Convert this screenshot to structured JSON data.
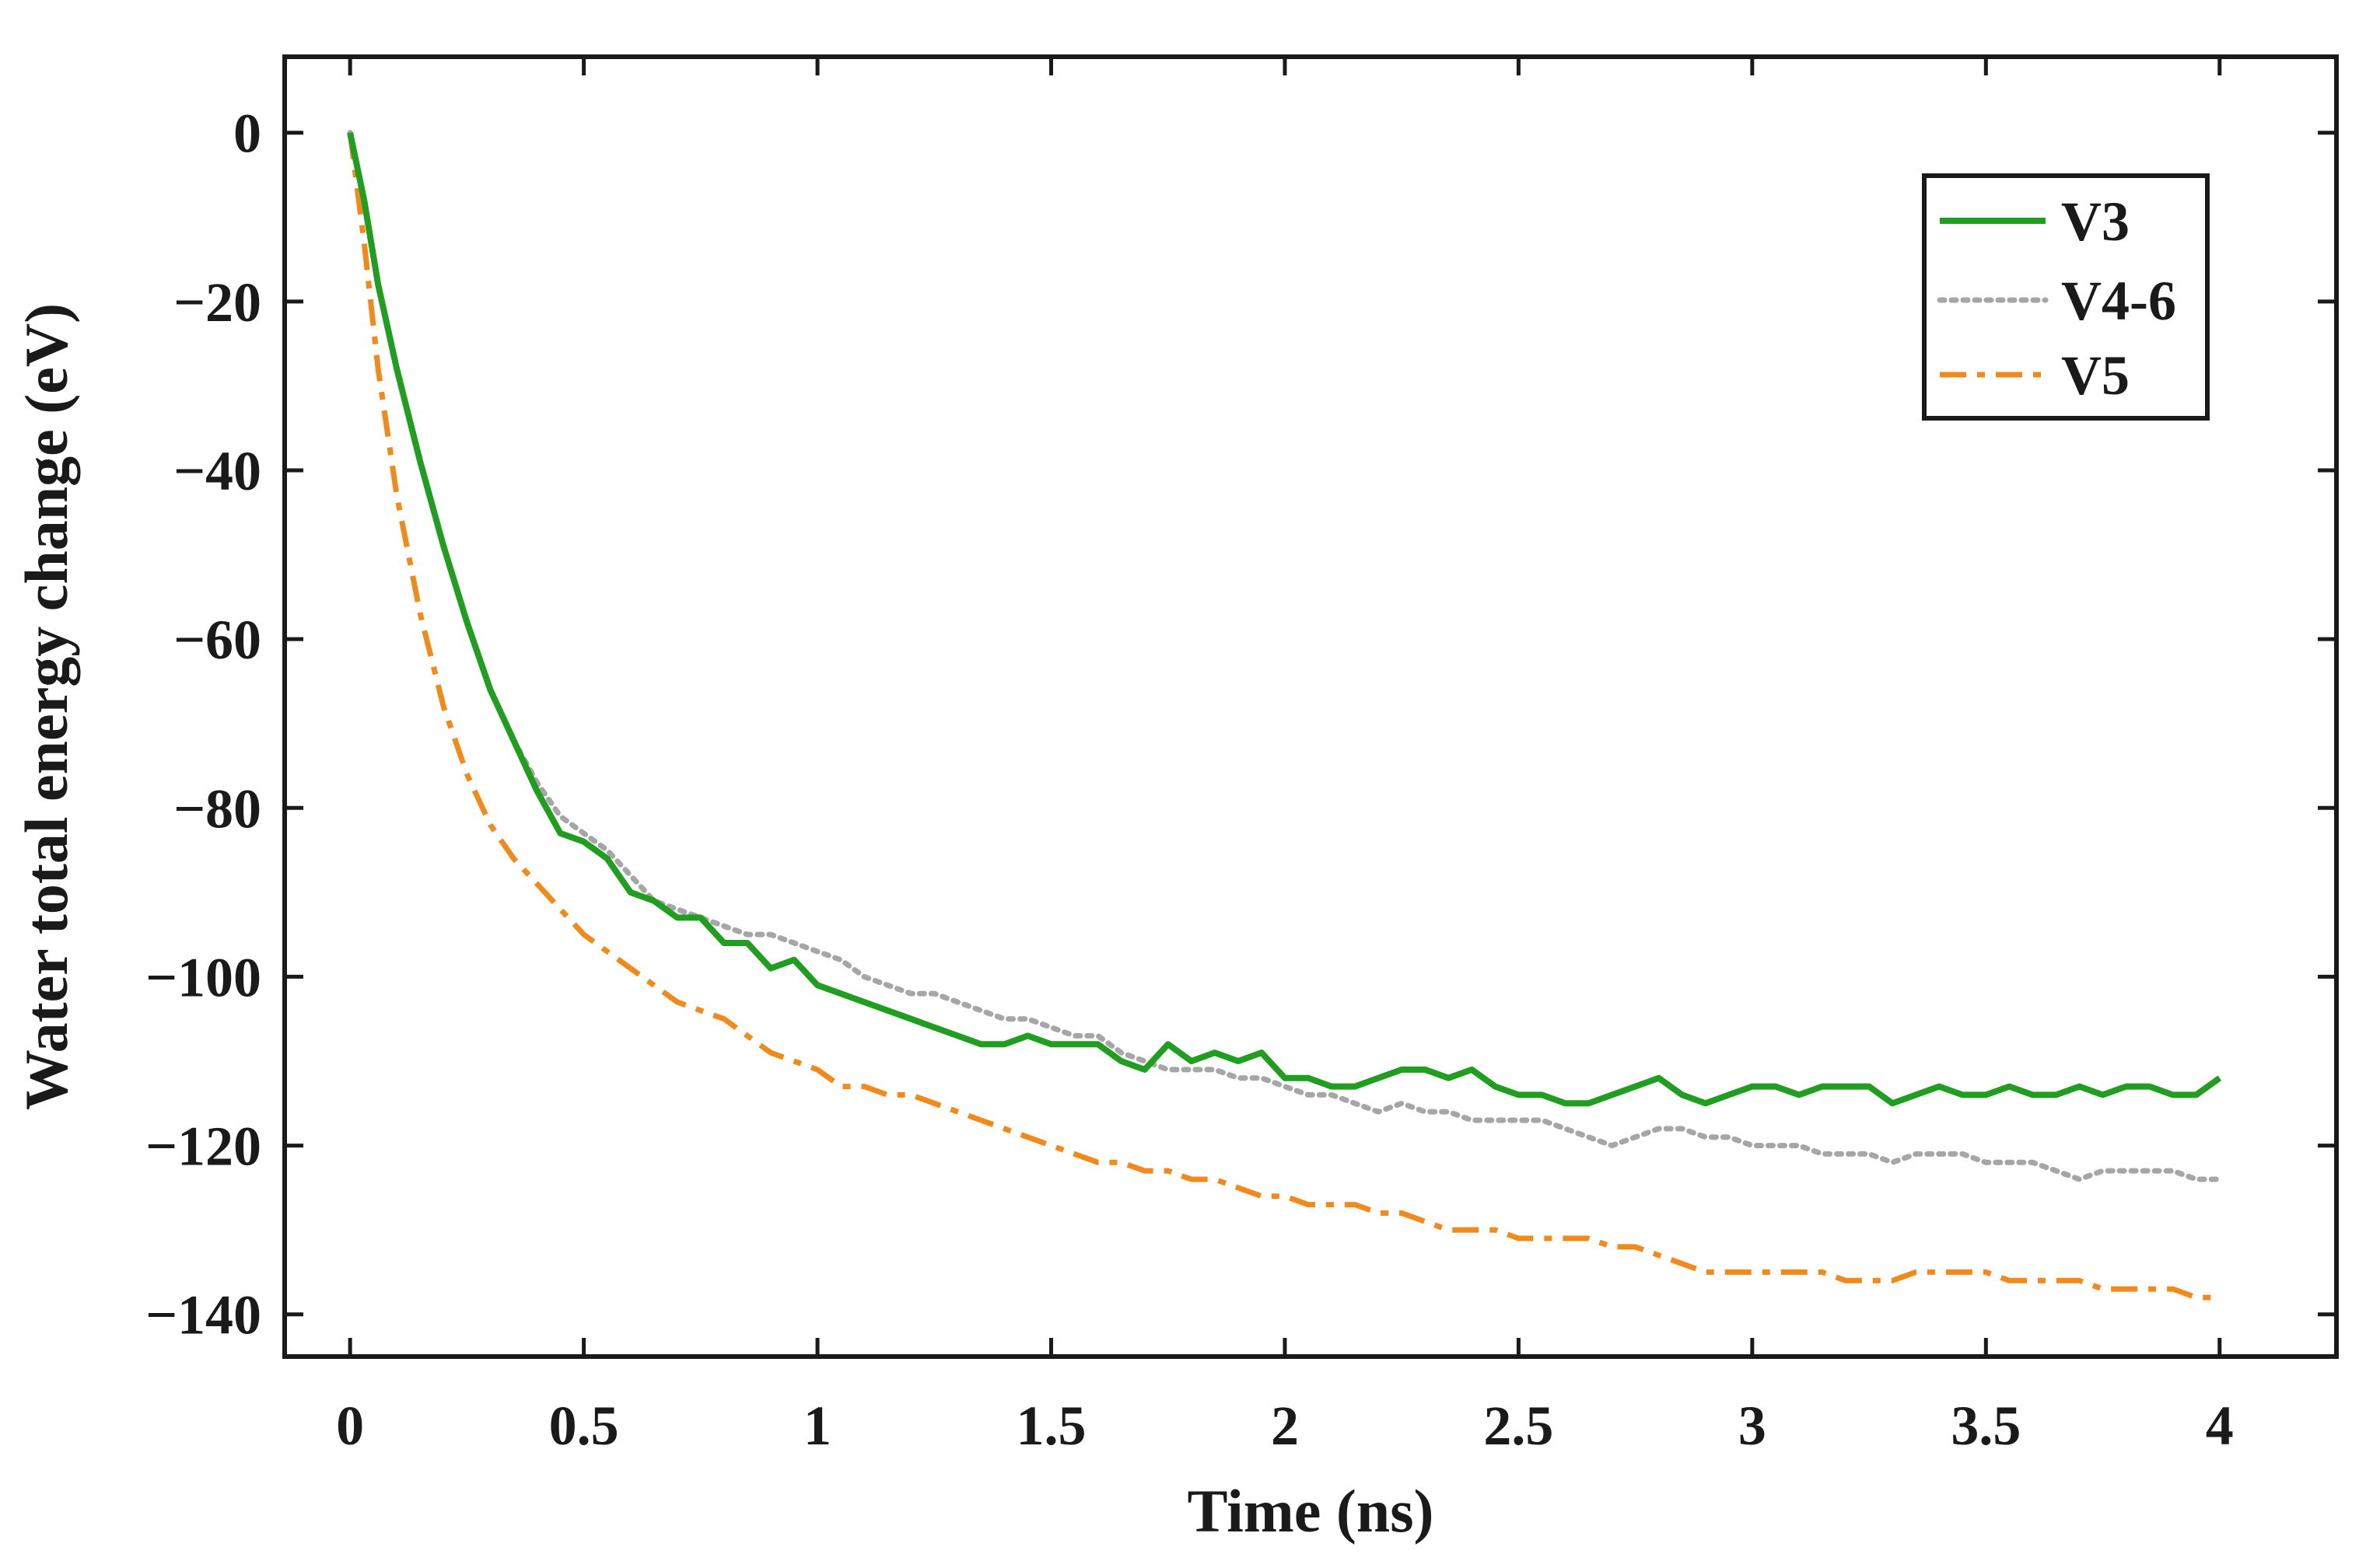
{
  "chart_data": {
    "type": "line",
    "title": "",
    "xlabel": "Time (ns)",
    "ylabel": "Water total energy change (eV)",
    "xlim": [
      -0.14,
      4.25
    ],
    "ylim": [
      -145,
      9
    ],
    "xticks": [
      0,
      0.5,
      1,
      1.5,
      2,
      2.5,
      3,
      3.5,
      4
    ],
    "xtick_labels": [
      "0",
      "0.5",
      "1",
      "1.5",
      "2",
      "2.5",
      "3",
      "3.5",
      "4"
    ],
    "yticks": [
      0,
      -20,
      -40,
      -60,
      -80,
      -100,
      -120,
      -140
    ],
    "ytick_labels": [
      "0",
      "−20",
      "−40",
      "−60",
      "−80",
      "−100",
      "−120",
      "−140"
    ],
    "grid": false,
    "legend_position": "top-right",
    "series": [
      {
        "name": "V3",
        "color": "#1f9e1f",
        "style": "solid",
        "x": [
          0,
          0.03,
          0.06,
          0.1,
          0.15,
          0.2,
          0.25,
          0.3,
          0.35,
          0.4,
          0.45,
          0.5,
          0.55,
          0.6,
          0.65,
          0.7,
          0.75,
          0.8,
          0.85,
          0.9,
          0.95,
          1.0,
          1.05,
          1.1,
          1.15,
          1.2,
          1.25,
          1.3,
          1.35,
          1.4,
          1.45,
          1.5,
          1.55,
          1.6,
          1.65,
          1.7,
          1.75,
          1.8,
          1.85,
          1.9,
          1.95,
          2.0,
          2.05,
          2.1,
          2.15,
          2.2,
          2.25,
          2.3,
          2.35,
          2.4,
          2.45,
          2.5,
          2.55,
          2.6,
          2.65,
          2.7,
          2.75,
          2.8,
          2.85,
          2.9,
          2.95,
          3.0,
          3.05,
          3.1,
          3.15,
          3.2,
          3.25,
          3.3,
          3.35,
          3.4,
          3.45,
          3.5,
          3.55,
          3.6,
          3.65,
          3.7,
          3.75,
          3.8,
          3.85,
          3.9,
          3.95,
          4.0
        ],
        "y": [
          0,
          -8,
          -18,
          -28,
          -39,
          -49,
          -58,
          -66,
          -72,
          -78,
          -83,
          -84,
          -86,
          -90,
          -91,
          -93,
          -93,
          -96,
          -96,
          -99,
          -98,
          -101,
          -102,
          -103,
          -104,
          -105,
          -106,
          -107,
          -108,
          -108,
          -107,
          -108,
          -108,
          -108,
          -110,
          -111,
          -108,
          -110,
          -109,
          -110,
          -109,
          -112,
          -112,
          -113,
          -113,
          -112,
          -111,
          -111,
          -112,
          -111,
          -113,
          -114,
          -114,
          -115,
          -115,
          -114,
          -113,
          -112,
          -114,
          -115,
          -114,
          -113,
          -113,
          -114,
          -113,
          -113,
          -113,
          -115,
          -114,
          -113,
          -114,
          -114,
          -113,
          -114,
          -114,
          -113,
          -114,
          -113,
          -113,
          -114,
          -114,
          -112
        ]
      },
      {
        "name": "V4-6",
        "color": "#a6a6a6",
        "style": "dotted",
        "x": [
          0,
          0.03,
          0.06,
          0.1,
          0.15,
          0.2,
          0.25,
          0.3,
          0.35,
          0.4,
          0.45,
          0.5,
          0.55,
          0.6,
          0.65,
          0.7,
          0.75,
          0.8,
          0.85,
          0.9,
          0.95,
          1.0,
          1.05,
          1.1,
          1.15,
          1.2,
          1.25,
          1.3,
          1.35,
          1.4,
          1.45,
          1.5,
          1.55,
          1.6,
          1.65,
          1.7,
          1.75,
          1.8,
          1.85,
          1.9,
          1.95,
          2.0,
          2.05,
          2.1,
          2.15,
          2.2,
          2.25,
          2.3,
          2.35,
          2.4,
          2.45,
          2.5,
          2.55,
          2.6,
          2.65,
          2.7,
          2.75,
          2.8,
          2.85,
          2.9,
          2.95,
          3.0,
          3.05,
          3.1,
          3.15,
          3.2,
          3.25,
          3.3,
          3.35,
          3.4,
          3.45,
          3.5,
          3.55,
          3.6,
          3.65,
          3.7,
          3.75,
          3.8,
          3.85,
          3.9,
          3.95,
          4.0
        ],
        "y": [
          0,
          -8,
          -18,
          -28,
          -39,
          -49,
          -58,
          -66,
          -72,
          -77,
          -81,
          -83,
          -85,
          -88,
          -91,
          -92,
          -93,
          -94,
          -95,
          -95,
          -96,
          -97,
          -98,
          -100,
          -101,
          -102,
          -102,
          -103,
          -104,
          -105,
          -105,
          -106,
          -107,
          -107,
          -109,
          -110,
          -111,
          -111,
          -111,
          -112,
          -112,
          -113,
          -114,
          -114,
          -115,
          -116,
          -115,
          -116,
          -116,
          -117,
          -117,
          -117,
          -117,
          -118,
          -119,
          -120,
          -119,
          -118,
          -118,
          -119,
          -119,
          -120,
          -120,
          -120,
          -121,
          -121,
          -121,
          -122,
          -121,
          -121,
          -121,
          -122,
          -122,
          -122,
          -123,
          -124,
          -123,
          -123,
          -123,
          -123,
          -124,
          -124
        ]
      },
      {
        "name": "V5",
        "color": "#f28a1b",
        "style": "dashed",
        "x": [
          0,
          0.03,
          0.06,
          0.1,
          0.15,
          0.2,
          0.25,
          0.3,
          0.35,
          0.4,
          0.45,
          0.5,
          0.55,
          0.6,
          0.65,
          0.7,
          0.75,
          0.8,
          0.85,
          0.9,
          0.95,
          1.0,
          1.05,
          1.1,
          1.15,
          1.2,
          1.25,
          1.3,
          1.35,
          1.4,
          1.45,
          1.5,
          1.55,
          1.6,
          1.65,
          1.7,
          1.75,
          1.8,
          1.85,
          1.9,
          1.95,
          2.0,
          2.05,
          2.1,
          2.15,
          2.2,
          2.25,
          2.3,
          2.35,
          2.4,
          2.45,
          2.5,
          2.55,
          2.6,
          2.65,
          2.7,
          2.75,
          2.8,
          2.85,
          2.9,
          2.95,
          3.0,
          3.05,
          3.1,
          3.15,
          3.2,
          3.25,
          3.3,
          3.35,
          3.4,
          3.45,
          3.5,
          3.55,
          3.6,
          3.65,
          3.7,
          3.75,
          3.8,
          3.85,
          3.9,
          3.95,
          4.0
        ],
        "y": [
          0,
          -13,
          -28,
          -43,
          -57,
          -68,
          -76,
          -82,
          -86,
          -89,
          -92,
          -95,
          -97,
          -99,
          -101,
          -103,
          -104,
          -105,
          -107,
          -109,
          -110,
          -111,
          -113,
          -113,
          -114,
          -114,
          -115,
          -116,
          -117,
          -118,
          -119,
          -120,
          -121,
          -122,
          -122,
          -123,
          -123,
          -124,
          -124,
          -125,
          -126,
          -126,
          -127,
          -127,
          -127,
          -128,
          -128,
          -129,
          -130,
          -130,
          -130,
          -131,
          -131,
          -131,
          -131,
          -132,
          -132,
          -133,
          -134,
          -135,
          -135,
          -135,
          -135,
          -135,
          -135,
          -136,
          -136,
          -136,
          -135,
          -135,
          -135,
          -135,
          -136,
          -136,
          -136,
          -136,
          -137,
          -137,
          -137,
          -137,
          -138,
          -138
        ]
      }
    ]
  }
}
